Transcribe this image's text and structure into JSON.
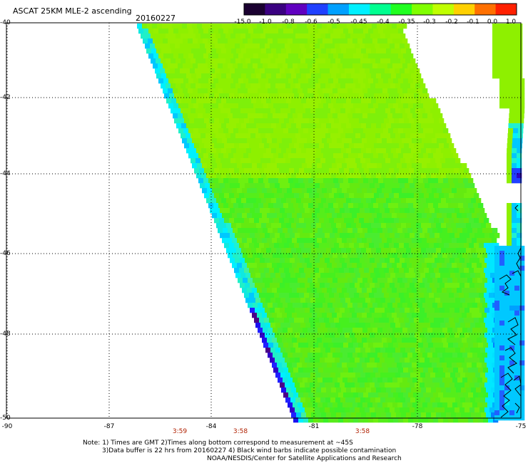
{
  "header": {
    "title": "ASCAT 25KM MLE-2 ascending",
    "date": "20160227"
  },
  "colorbar": {
    "labels": [
      "-15.0",
      "-1.0",
      "-0.8",
      "-0.6",
      "-0.5",
      "-0.45",
      "-0.4",
      "-0.35",
      "-0.3",
      "-0.2",
      "-0.1",
      "0.0",
      "1.0"
    ],
    "colors": [
      "#1a0030",
      "#3a0080",
      "#6000c0",
      "#2040ff",
      "#00a0ff",
      "#00f0ff",
      "#00ff90",
      "#20ff20",
      "#80ff00",
      "#c0ff00",
      "#ffd000",
      "#ff7000",
      "#ff2000"
    ]
  },
  "axes": {
    "lat_labels": [
      "-40",
      "-42",
      "-44",
      "-46",
      "-48",
      "-50"
    ],
    "lon_labels": [
      "-90",
      "-87",
      "-84",
      "-81",
      "-78",
      "-75"
    ]
  },
  "times": [
    "3:59",
    "3:58",
    "3:58"
  ],
  "notes": [
    "Note: 1) Times are GMT 2)Times along bottom correspond to measurement at ~45S",
    "3)Data buffer is 22 hrs from 20160227 4) Black wind barbs indicate possible contamination",
    "NOAA/NESDIS/Center for Satellite Applications and Research"
  ]
}
